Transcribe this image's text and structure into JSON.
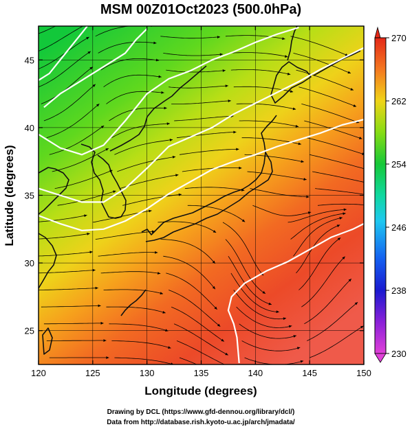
{
  "chart_data": {
    "type": "heatmap",
    "title": "MSM 00Z01Oct2023 (500.0hPa)",
    "xlabel": "Longitude (degrees)",
    "ylabel": "Latitude  (degrees)",
    "xlim": [
      120,
      150
    ],
    "ylim": [
      22.5,
      47.5
    ],
    "xticks": [
      120,
      125,
      130,
      135,
      140,
      145,
      150
    ],
    "yticks": [
      25,
      30,
      35,
      40,
      45
    ],
    "colorbar": {
      "min": 230,
      "max": 270,
      "ticks": [
        230,
        238,
        246,
        254,
        262,
        270
      ]
    },
    "contours": [
      {
        "level": 255,
        "points": [
          [
            120.5,
            41.5
          ],
          [
            122,
            42.5
          ],
          [
            124,
            43.5
          ],
          [
            126,
            44.5
          ],
          [
            128,
            45.5
          ],
          [
            129,
            46.5
          ],
          [
            130,
            47.3
          ]
        ]
      },
      {
        "level": 258,
        "points": [
          [
            120,
            43.5
          ],
          [
            121,
            44
          ],
          [
            122,
            45
          ],
          [
            123,
            46
          ],
          [
            124,
            47
          ],
          [
            124.5,
            47.5
          ]
        ]
      },
      {
        "level": 258,
        "points": [
          [
            120,
            39.5
          ],
          [
            122,
            38.5
          ],
          [
            124,
            38
          ],
          [
            126,
            38.7
          ],
          [
            128,
            40.5
          ],
          [
            130,
            42.5
          ],
          [
            132,
            43.6
          ],
          [
            134,
            44.2
          ],
          [
            136,
            45
          ],
          [
            138,
            45.6
          ],
          [
            140,
            46.3
          ],
          [
            142,
            46.9
          ],
          [
            144,
            47.4
          ]
        ]
      },
      {
        "level": 261,
        "points": [
          [
            120,
            35.5
          ],
          [
            122,
            35
          ],
          [
            124,
            34.5
          ],
          [
            126,
            34.5
          ],
          [
            128,
            35.5
          ],
          [
            130,
            37
          ],
          [
            132,
            38.6
          ],
          [
            134,
            39.3
          ],
          [
            136,
            40
          ],
          [
            138,
            41
          ],
          [
            140,
            41.8
          ],
          [
            142,
            42.6
          ],
          [
            144,
            43.4
          ],
          [
            146,
            44.3
          ],
          [
            148,
            45.1
          ],
          [
            150,
            45.9
          ]
        ]
      },
      {
        "level": 264,
        "points": [
          [
            120,
            33.5
          ],
          [
            122,
            32.9
          ],
          [
            124,
            32.4
          ],
          [
            126,
            32.5
          ],
          [
            128,
            33.1
          ],
          [
            130,
            34
          ],
          [
            132,
            35.1
          ],
          [
            134,
            36
          ],
          [
            136,
            36.9
          ],
          [
            138,
            37.5
          ],
          [
            140,
            38
          ],
          [
            142,
            38.6
          ],
          [
            144,
            39.1
          ],
          [
            146,
            39.6
          ],
          [
            148,
            40.2
          ],
          [
            150,
            40.6
          ]
        ]
      },
      {
        "level": 267,
        "points": [
          [
            138.5,
            22.6
          ],
          [
            138.3,
            24.5
          ],
          [
            138,
            25.5
          ],
          [
            137.5,
            26.5
          ],
          [
            137.8,
            27.5
          ],
          [
            139,
            28.5
          ],
          [
            141,
            29.4
          ],
          [
            143,
            30.1
          ],
          [
            145,
            31
          ],
          [
            147,
            31.9
          ],
          [
            149,
            32.5
          ],
          [
            150,
            32.9
          ]
        ]
      }
    ],
    "grid": true
  },
  "credits": {
    "line1": "Drawing by DCL (https://www.gfd-dennou.org/library/dcl/)",
    "line2": "Data from http://database.rish.kyoto-u.ac.jp/arch/jmadata/"
  }
}
